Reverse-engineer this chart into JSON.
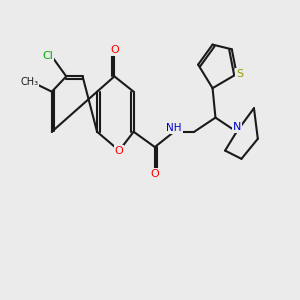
{
  "bg_color": "#ebebeb",
  "bond_color": "#1a1a1a",
  "atom_colors": {
    "O": "#ff0000",
    "N": "#0000cd",
    "Cl": "#00aa00",
    "S": "#999900",
    "C": "#1a1a1a",
    "H": "#555555"
  },
  "figsize": [
    3.0,
    3.0
  ],
  "dpi": 100
}
